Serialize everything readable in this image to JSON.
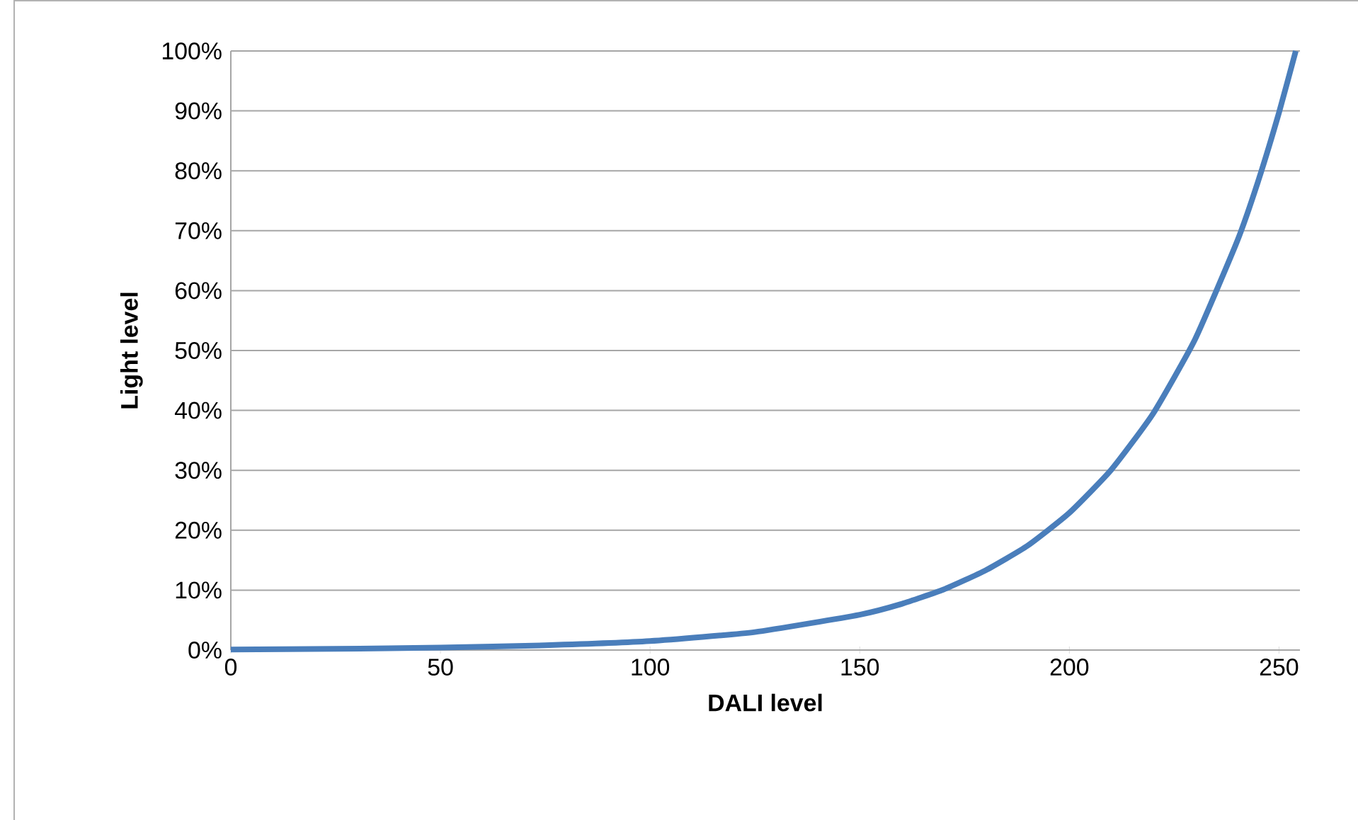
{
  "chart_data": {
    "type": "line",
    "xlabel": "DALI level",
    "ylabel": "Light level",
    "x": [
      0,
      25,
      50,
      75,
      100,
      125,
      150,
      160,
      170,
      180,
      190,
      200,
      210,
      220,
      230,
      240,
      245,
      250,
      254
    ],
    "values": [
      0.1,
      0.2,
      0.4,
      0.8,
      1.5,
      3.0,
      5.9,
      7.7,
      10.1,
      13.3,
      17.4,
      22.9,
      30.1,
      39.5,
      51.9,
      68.2,
      78.2,
      89.7,
      100
    ],
    "color": "#4a7ebb",
    "xlim": [
      0,
      255
    ],
    "xticks": [
      0,
      50,
      100,
      150,
      200,
      250
    ],
    "ylim": [
      0,
      100
    ],
    "yticks": [
      {
        "value": 0,
        "label": "0%"
      },
      {
        "value": 10,
        "label": "10%"
      },
      {
        "value": 20,
        "label": "20%"
      },
      {
        "value": 30,
        "label": "30%"
      },
      {
        "value": 40,
        "label": "40%"
      },
      {
        "value": 50,
        "label": "50%"
      },
      {
        "value": 60,
        "label": "60%"
      },
      {
        "value": 70,
        "label": "70%"
      },
      {
        "value": 80,
        "label": "80%"
      },
      {
        "value": 90,
        "label": "90%"
      },
      {
        "value": 100,
        "label": "100%"
      }
    ],
    "grid": "y"
  }
}
